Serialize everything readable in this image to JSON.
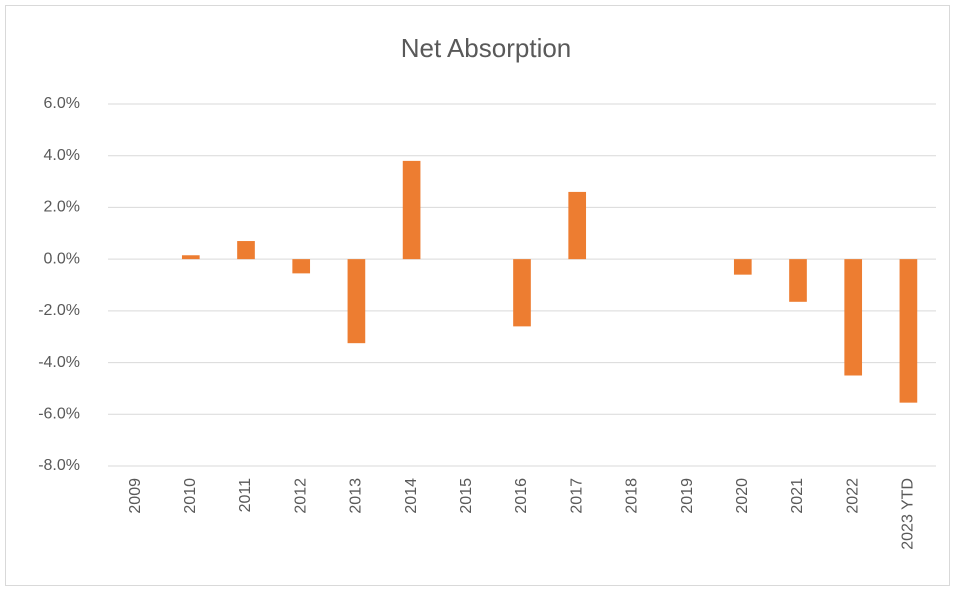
{
  "chart_data": {
    "type": "bar",
    "title": "Net Absorption",
    "categories": [
      "2009",
      "2010",
      "2011",
      "2012",
      "2013",
      "2014",
      "2015",
      "2016",
      "2017",
      "2018",
      "2019",
      "2020",
      "2021",
      "2022",
      "2023 YTD"
    ],
    "values": [
      0,
      0.15,
      0.7,
      -0.55,
      -3.25,
      3.8,
      0,
      -2.6,
      2.6,
      0,
      0,
      -0.6,
      -1.65,
      -4.5,
      -5.55
    ],
    "color": "#ed7d31",
    "ylim": [
      -8,
      6
    ],
    "yticks": [
      {
        "value": -8,
        "label": "-8.0%"
      },
      {
        "value": -6,
        "label": "-6.0%"
      },
      {
        "value": -4,
        "label": "-4.0%"
      },
      {
        "value": -2,
        "label": "-2.0%"
      },
      {
        "value": 0,
        "label": "0.0%"
      },
      {
        "value": 2,
        "label": "2.0%"
      },
      {
        "value": 4,
        "label": "4.0%"
      },
      {
        "value": 6,
        "label": "6.0%"
      }
    ],
    "grid": true
  }
}
